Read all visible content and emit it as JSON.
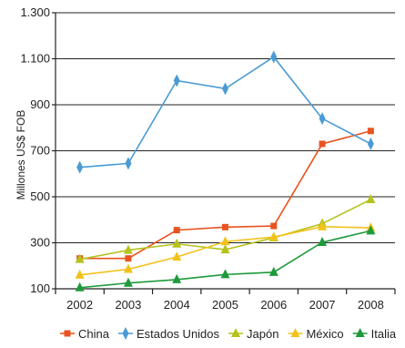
{
  "chart_data": {
    "type": "line",
    "title": "",
    "xlabel": "",
    "ylabel": "Millones US$ FOB",
    "ylim": [
      100,
      1300
    ],
    "y_ticks": [
      "100",
      "300",
      "500",
      "700",
      "900",
      "1.100",
      "1.300"
    ],
    "y_tick_values": [
      100,
      300,
      500,
      700,
      900,
      1100,
      1300
    ],
    "categories": [
      "2002",
      "2003",
      "2004",
      "2005",
      "2006",
      "2007",
      "2008"
    ],
    "grid": true,
    "legend_position": "bottom",
    "series": [
      {
        "name": "China",
        "color": "#e8531f",
        "marker": "square",
        "values": [
          232,
          232,
          355,
          368,
          373,
          730,
          786
        ]
      },
      {
        "name": "Estados Unidos",
        "color": "#4a9bd5",
        "marker": "diamond",
        "values": [
          628,
          645,
          1005,
          970,
          1108,
          840,
          730
        ]
      },
      {
        "name": "Japón",
        "color": "#b5c21a",
        "marker": "triangle",
        "values": [
          228,
          268,
          295,
          270,
          322,
          383,
          488
        ]
      },
      {
        "name": "México",
        "color": "#f2c21a",
        "marker": "triangle",
        "values": [
          160,
          185,
          238,
          305,
          325,
          370,
          365
        ]
      },
      {
        "name": "Italia",
        "color": "#1e9a3a",
        "marker": "triangle",
        "values": [
          105,
          125,
          140,
          162,
          172,
          302,
          352
        ]
      }
    ]
  }
}
